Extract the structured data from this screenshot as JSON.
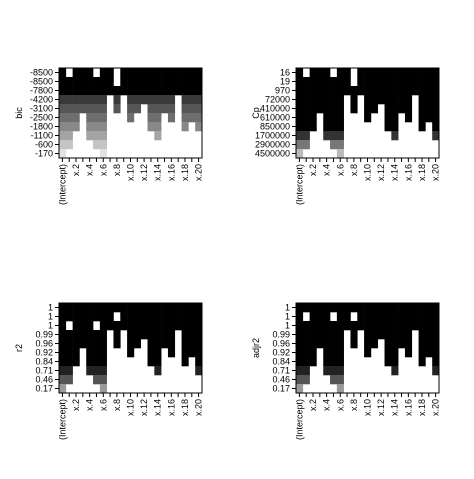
{
  "chart_data": [
    {
      "type": "subset-grid",
      "ylabel": "bic",
      "categories": [
        "(Intercept)",
        null,
        "x.2",
        null,
        "x.4",
        null,
        "x.6",
        null,
        "x.8",
        null,
        "x.10",
        null,
        "x.12",
        null,
        "x.14",
        null,
        "x.16",
        null,
        "x.18",
        null,
        "x.20"
      ],
      "row_labels": [
        -8500,
        -8500,
        -7800,
        -4200,
        -3100,
        -2500,
        -1800,
        -1100,
        -600,
        -170
      ],
      "row_colors": [
        "#000000",
        "#000000",
        "#000000",
        "#3a3a3a",
        "#565656",
        "#6e6e6e",
        "#888888",
        "#a4a4a4",
        "#c4c4c4",
        "#e2e2e2"
      ],
      "included": [
        [
          1,
          0,
          1,
          1,
          1,
          0,
          1,
          1,
          0,
          1,
          1,
          1,
          1,
          1,
          1,
          1,
          1,
          1,
          1,
          1,
          1
        ],
        [
          1,
          1,
          1,
          1,
          1,
          1,
          1,
          1,
          0,
          1,
          1,
          1,
          1,
          1,
          1,
          1,
          1,
          1,
          1,
          1,
          1
        ],
        [
          1,
          1,
          1,
          1,
          1,
          1,
          1,
          1,
          1,
          1,
          1,
          1,
          1,
          1,
          1,
          1,
          1,
          1,
          1,
          1,
          1
        ],
        [
          1,
          1,
          1,
          1,
          1,
          1,
          1,
          0,
          1,
          0,
          1,
          1,
          1,
          1,
          1,
          1,
          1,
          0,
          1,
          1,
          1
        ],
        [
          1,
          1,
          1,
          1,
          1,
          1,
          1,
          0,
          1,
          0,
          1,
          1,
          0,
          1,
          1,
          1,
          1,
          0,
          1,
          1,
          1
        ],
        [
          1,
          1,
          1,
          0,
          1,
          1,
          1,
          0,
          0,
          0,
          1,
          0,
          0,
          1,
          1,
          0,
          1,
          0,
          1,
          1,
          1
        ],
        [
          1,
          1,
          1,
          0,
          1,
          1,
          1,
          0,
          0,
          0,
          0,
          0,
          0,
          1,
          1,
          0,
          0,
          0,
          1,
          0,
          1
        ],
        [
          1,
          1,
          0,
          0,
          1,
          1,
          1,
          0,
          0,
          0,
          0,
          0,
          0,
          0,
          1,
          0,
          0,
          0,
          0,
          0,
          0
        ],
        [
          1,
          1,
          0,
          0,
          0,
          1,
          1,
          0,
          0,
          0,
          0,
          0,
          0,
          0,
          0,
          0,
          0,
          0,
          0,
          0,
          0
        ],
        [
          1,
          0,
          0,
          0,
          0,
          0,
          1,
          0,
          0,
          0,
          0,
          0,
          0,
          0,
          0,
          0,
          0,
          0,
          0,
          0,
          0
        ]
      ]
    },
    {
      "type": "subset-grid",
      "ylabel": "Cp",
      "categories": [
        "(Intercept)",
        null,
        "x.2",
        null,
        "x.4",
        null,
        "x.6",
        null,
        "x.8",
        null,
        "x.10",
        null,
        "x.12",
        null,
        "x.14",
        null,
        "x.16",
        null,
        "x.18",
        null,
        "x.20"
      ],
      "row_labels": [
        16,
        19,
        970,
        72000,
        410000,
        610000,
        850000,
        1700000,
        2900000,
        4500000
      ],
      "row_colors": [
        "#000000",
        "#000000",
        "#000000",
        "#000000",
        "#000000",
        "#000000",
        "#000000",
        "#333333",
        "#777777",
        "#bbbbbb"
      ],
      "included": [
        [
          1,
          0,
          1,
          1,
          1,
          0,
          1,
          1,
          0,
          1,
          1,
          1,
          1,
          1,
          1,
          1,
          1,
          1,
          1,
          1,
          1
        ],
        [
          1,
          1,
          1,
          1,
          1,
          1,
          1,
          1,
          0,
          1,
          1,
          1,
          1,
          1,
          1,
          1,
          1,
          1,
          1,
          1,
          1
        ],
        [
          1,
          1,
          1,
          1,
          1,
          1,
          1,
          1,
          1,
          1,
          1,
          1,
          1,
          1,
          1,
          1,
          1,
          1,
          1,
          1,
          1
        ],
        [
          1,
          1,
          1,
          1,
          1,
          1,
          1,
          0,
          1,
          0,
          1,
          1,
          1,
          1,
          1,
          1,
          1,
          0,
          1,
          1,
          1
        ],
        [
          1,
          1,
          1,
          1,
          1,
          1,
          1,
          0,
          1,
          0,
          1,
          1,
          0,
          1,
          1,
          1,
          1,
          0,
          1,
          1,
          1
        ],
        [
          1,
          1,
          1,
          0,
          1,
          1,
          1,
          0,
          0,
          0,
          1,
          0,
          0,
          1,
          1,
          0,
          1,
          0,
          1,
          1,
          1
        ],
        [
          1,
          1,
          1,
          0,
          1,
          1,
          1,
          0,
          0,
          0,
          0,
          0,
          0,
          1,
          1,
          0,
          0,
          0,
          1,
          0,
          1
        ],
        [
          1,
          1,
          0,
          0,
          1,
          1,
          1,
          0,
          0,
          0,
          0,
          0,
          0,
          0,
          1,
          0,
          0,
          0,
          0,
          0,
          1
        ],
        [
          1,
          1,
          0,
          0,
          0,
          1,
          1,
          0,
          0,
          0,
          0,
          0,
          0,
          0,
          0,
          0,
          0,
          0,
          0,
          0,
          0
        ],
        [
          1,
          0,
          0,
          0,
          0,
          0,
          1,
          0,
          0,
          0,
          0,
          0,
          0,
          0,
          0,
          0,
          0,
          0,
          0,
          0,
          0
        ]
      ]
    },
    {
      "type": "subset-grid",
      "ylabel": "r2",
      "categories": [
        "(Intercept)",
        null,
        "x.2",
        null,
        "x.4",
        null,
        "x.6",
        null,
        "x.8",
        null,
        "x.10",
        null,
        "x.12",
        null,
        "x.14",
        null,
        "x.16",
        null,
        "x.18",
        null,
        "x.20"
      ],
      "row_labels": [
        1,
        1,
        1,
        0.99,
        0.96,
        0.92,
        0.84,
        0.71,
        0.46,
        0.17
      ],
      "row_colors": [
        "#000000",
        "#000000",
        "#000000",
        "#000000",
        "#000000",
        "#000000",
        "#000000",
        "#222222",
        "#555555",
        "#999999"
      ],
      "included": [
        [
          1,
          1,
          1,
          1,
          1,
          1,
          1,
          1,
          1,
          1,
          1,
          1,
          1,
          1,
          1,
          1,
          1,
          1,
          1,
          1,
          1
        ],
        [
          1,
          1,
          1,
          1,
          1,
          1,
          1,
          1,
          0,
          1,
          1,
          1,
          1,
          1,
          1,
          1,
          1,
          1,
          1,
          1,
          1
        ],
        [
          1,
          0,
          1,
          1,
          1,
          0,
          1,
          1,
          1,
          1,
          1,
          1,
          1,
          1,
          1,
          1,
          1,
          1,
          1,
          1,
          1
        ],
        [
          1,
          1,
          1,
          1,
          1,
          1,
          1,
          0,
          1,
          0,
          1,
          1,
          1,
          1,
          1,
          1,
          1,
          0,
          1,
          1,
          1
        ],
        [
          1,
          1,
          1,
          1,
          1,
          1,
          1,
          0,
          1,
          0,
          1,
          1,
          0,
          1,
          1,
          1,
          1,
          0,
          1,
          1,
          1
        ],
        [
          1,
          1,
          1,
          0,
          1,
          1,
          1,
          0,
          0,
          0,
          1,
          0,
          0,
          1,
          1,
          0,
          1,
          0,
          1,
          1,
          1
        ],
        [
          1,
          1,
          1,
          0,
          1,
          1,
          1,
          0,
          0,
          0,
          0,
          0,
          0,
          1,
          1,
          0,
          0,
          0,
          1,
          0,
          1
        ],
        [
          1,
          1,
          0,
          0,
          1,
          1,
          1,
          0,
          0,
          0,
          0,
          0,
          0,
          0,
          1,
          0,
          0,
          0,
          0,
          0,
          1
        ],
        [
          1,
          1,
          0,
          0,
          0,
          1,
          1,
          0,
          0,
          0,
          0,
          0,
          0,
          0,
          0,
          0,
          0,
          0,
          0,
          0,
          0
        ],
        [
          1,
          0,
          0,
          0,
          0,
          0,
          1,
          0,
          0,
          0,
          0,
          0,
          0,
          0,
          0,
          0,
          0,
          0,
          0,
          0,
          0
        ]
      ]
    },
    {
      "type": "subset-grid",
      "ylabel": "adjr2",
      "categories": [
        "(Intercept)",
        null,
        "x.2",
        null,
        "x.4",
        null,
        "x.6",
        null,
        "x.8",
        null,
        "x.10",
        null,
        "x.12",
        null,
        "x.14",
        null,
        "x.16",
        null,
        "x.18",
        null,
        "x.20"
      ],
      "row_labels": [
        1,
        1,
        1,
        0.99,
        0.96,
        0.92,
        0.84,
        0.71,
        0.46,
        0.17
      ],
      "row_colors": [
        "#000000",
        "#000000",
        "#000000",
        "#000000",
        "#000000",
        "#000000",
        "#000000",
        "#222222",
        "#555555",
        "#999999"
      ],
      "included": [
        [
          1,
          1,
          1,
          1,
          1,
          1,
          1,
          1,
          1,
          1,
          1,
          1,
          1,
          1,
          1,
          1,
          1,
          1,
          1,
          1,
          1
        ],
        [
          1,
          0,
          1,
          1,
          1,
          0,
          1,
          1,
          0,
          1,
          1,
          1,
          1,
          1,
          1,
          1,
          1,
          1,
          1,
          1,
          1
        ],
        [
          1,
          1,
          1,
          1,
          1,
          1,
          1,
          1,
          1,
          1,
          1,
          1,
          1,
          1,
          1,
          1,
          1,
          1,
          1,
          1,
          1
        ],
        [
          1,
          1,
          1,
          1,
          1,
          1,
          1,
          0,
          1,
          0,
          1,
          1,
          1,
          1,
          1,
          1,
          1,
          0,
          1,
          1,
          1
        ],
        [
          1,
          1,
          1,
          1,
          1,
          1,
          1,
          0,
          1,
          0,
          1,
          1,
          0,
          1,
          1,
          1,
          1,
          0,
          1,
          1,
          1
        ],
        [
          1,
          1,
          1,
          0,
          1,
          1,
          1,
          0,
          0,
          0,
          1,
          0,
          0,
          1,
          1,
          0,
          1,
          0,
          1,
          1,
          1
        ],
        [
          1,
          1,
          1,
          0,
          1,
          1,
          1,
          0,
          0,
          0,
          0,
          0,
          0,
          1,
          1,
          0,
          0,
          0,
          1,
          0,
          1
        ],
        [
          1,
          1,
          0,
          0,
          1,
          1,
          1,
          0,
          0,
          0,
          0,
          0,
          0,
          0,
          1,
          0,
          0,
          0,
          0,
          0,
          1
        ],
        [
          1,
          1,
          0,
          0,
          0,
          1,
          1,
          0,
          0,
          0,
          0,
          0,
          0,
          0,
          0,
          0,
          0,
          0,
          0,
          0,
          0
        ],
        [
          1,
          0,
          0,
          0,
          0,
          0,
          1,
          0,
          0,
          0,
          0,
          0,
          0,
          0,
          0,
          0,
          0,
          0,
          0,
          0,
          0
        ]
      ]
    }
  ]
}
